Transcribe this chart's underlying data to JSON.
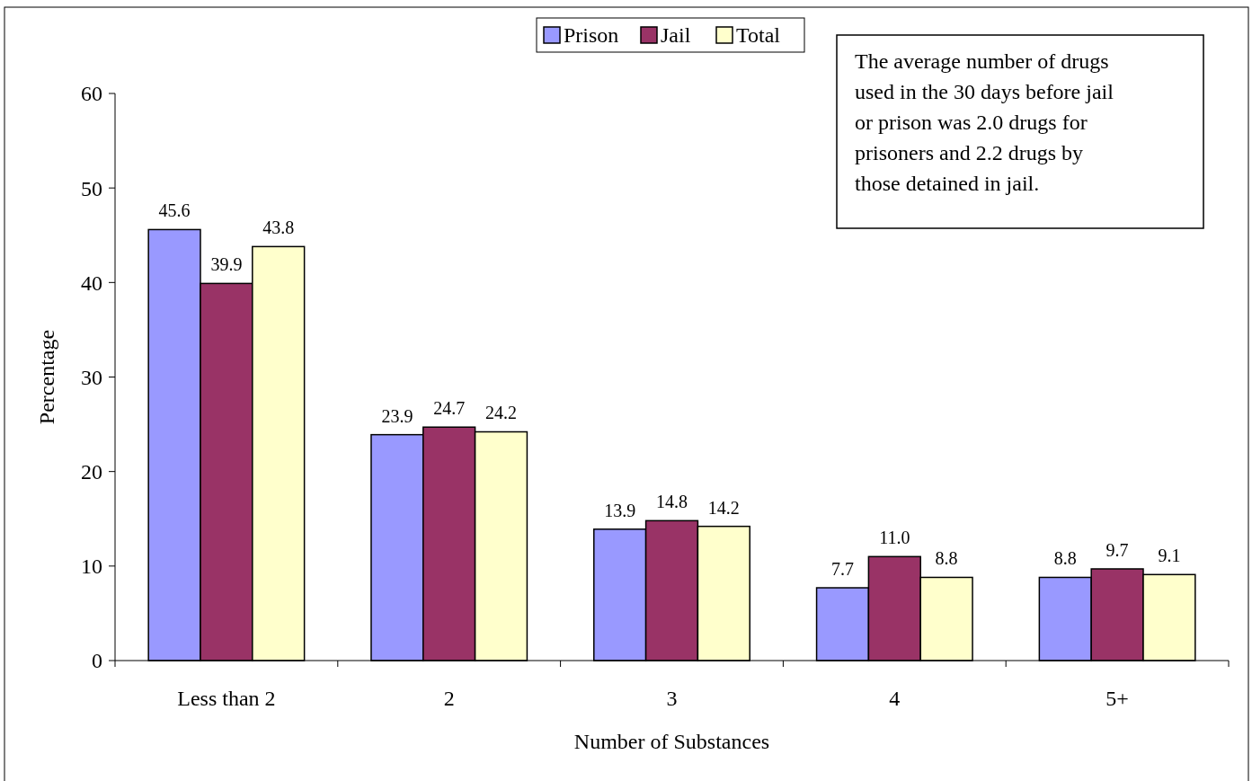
{
  "chart_data": {
    "type": "bar",
    "xlabel": "Number of Substances",
    "ylabel": "Percentage",
    "categories": [
      "Less than 2",
      "2",
      "3",
      "4",
      "5+"
    ],
    "series": [
      {
        "name": "Prison",
        "color": "#9999ff",
        "values": [
          45.6,
          23.9,
          13.9,
          7.7,
          8.8
        ],
        "value_labels": [
          "45.6",
          "23.9",
          "13.9",
          "7.7",
          "8.8"
        ]
      },
      {
        "name": "Jail",
        "color": "#993366",
        "values": [
          39.9,
          24.7,
          14.8,
          11.0,
          9.7
        ],
        "value_labels": [
          "39.9",
          "24.7",
          "14.8",
          "11.0",
          "9.7"
        ]
      },
      {
        "name": "Total",
        "color": "#ffffcc",
        "values": [
          43.8,
          24.2,
          14.2,
          8.8,
          9.1
        ],
        "value_labels": [
          "43.8",
          "24.2",
          "14.2",
          "8.8",
          "9.1"
        ]
      }
    ],
    "ylim": [
      0,
      60
    ],
    "yticks": [
      0,
      10,
      20,
      30,
      40,
      50,
      60
    ],
    "grid": false,
    "legend": "top",
    "annotations": [
      "The average number of drugs used in the 30 days before jail or prison was 2.0 drugs for prisoners and 2.2 drugs by those detained in jail."
    ]
  }
}
